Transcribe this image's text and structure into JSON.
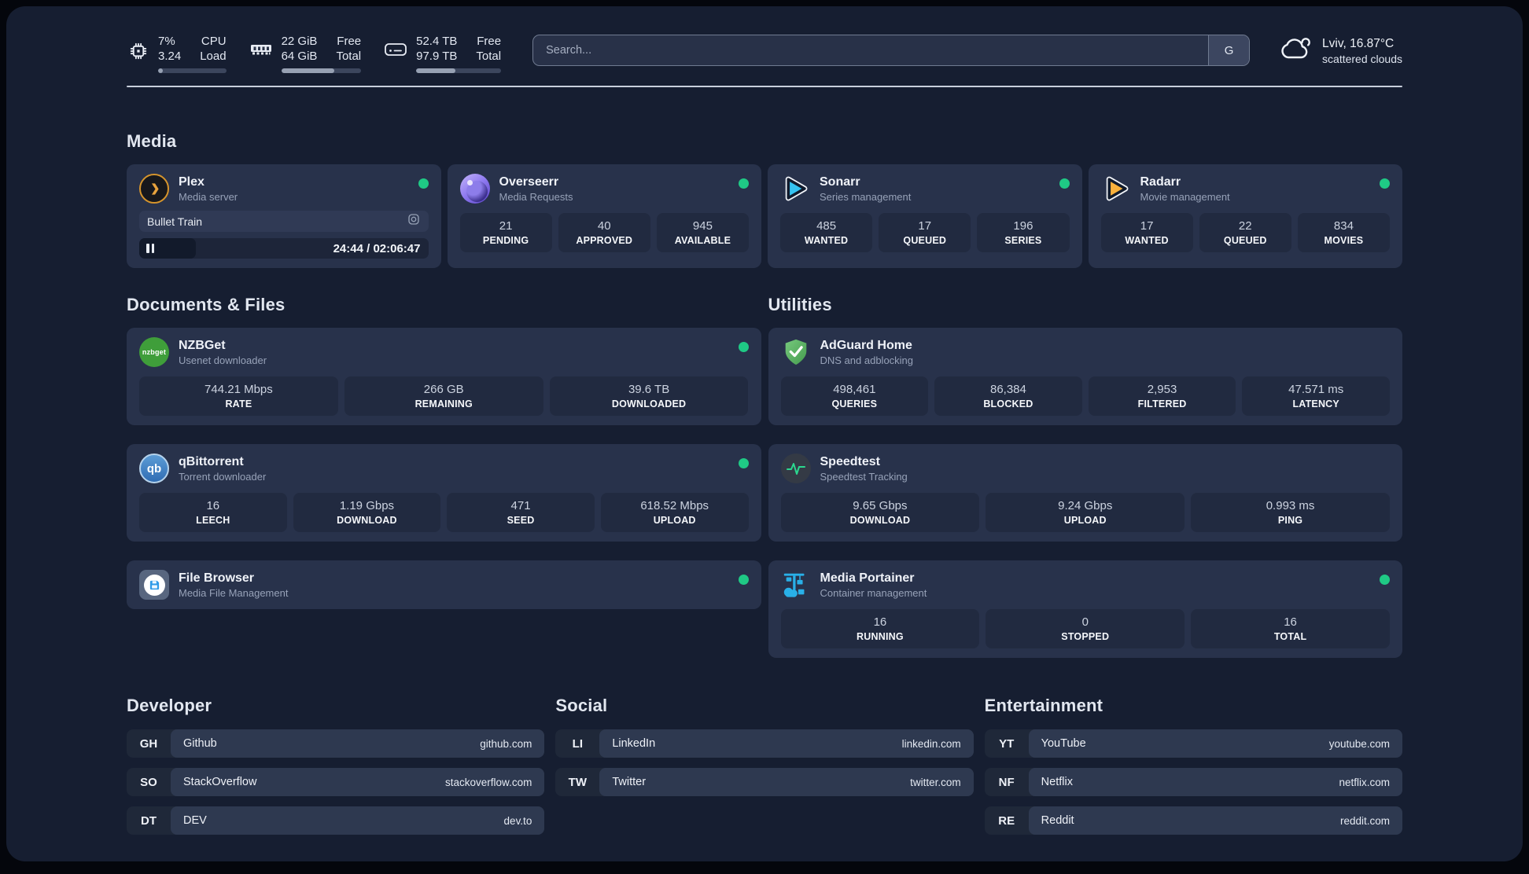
{
  "topbar": {
    "metrics": [
      {
        "name": "cpu",
        "values": [
          "7%",
          "3.24"
        ],
        "labels": [
          "CPU",
          "Load"
        ],
        "progress": 7
      },
      {
        "name": "memory",
        "values": [
          "22 GiB",
          "64 GiB"
        ],
        "labels": [
          "Free",
          "Total"
        ],
        "progress": 66
      },
      {
        "name": "storage",
        "values": [
          "52.4 TB",
          "97.9 TB"
        ],
        "labels": [
          "Free",
          "Total"
        ],
        "progress": 46
      }
    ],
    "search": {
      "placeholder": "Search...",
      "engine": "G"
    },
    "weather": {
      "location": "Lviv, 16.87°C",
      "condition": "scattered clouds"
    }
  },
  "sections": {
    "media": {
      "title": "Media",
      "plex": {
        "title": "Plex",
        "subtitle": "Media server",
        "status": "online",
        "now_playing": "Bullet Train",
        "time": "24:44 / 02:06:47",
        "progress_pct": 19.5
      },
      "overseerr": {
        "title": "Overseerr",
        "subtitle": "Media Requests",
        "status": "online",
        "stats": [
          {
            "value": "21",
            "label": "PENDING"
          },
          {
            "value": "40",
            "label": "APPROVED"
          },
          {
            "value": "945",
            "label": "AVAILABLE"
          }
        ]
      },
      "sonarr": {
        "title": "Sonarr",
        "subtitle": "Series management",
        "status": "online",
        "stats": [
          {
            "value": "485",
            "label": "WANTED"
          },
          {
            "value": "17",
            "label": "QUEUED"
          },
          {
            "value": "196",
            "label": "SERIES"
          }
        ]
      },
      "radarr": {
        "title": "Radarr",
        "subtitle": "Movie management",
        "status": "online",
        "stats": [
          {
            "value": "17",
            "label": "WANTED"
          },
          {
            "value": "22",
            "label": "QUEUED"
          },
          {
            "value": "834",
            "label": "MOVIES"
          }
        ]
      }
    },
    "documents": {
      "title": "Documents & Files",
      "nzbget": {
        "title": "NZBGet",
        "subtitle": "Usenet downloader",
        "status": "online",
        "icon_text": "nzbget",
        "stats": [
          {
            "value": "744.21 Mbps",
            "label": "RATE"
          },
          {
            "value": "266 GB",
            "label": "REMAINING"
          },
          {
            "value": "39.6 TB",
            "label": "DOWNLOADED"
          }
        ]
      },
      "qbittorrent": {
        "title": "qBittorrent",
        "subtitle": "Torrent downloader",
        "status": "online",
        "icon_text": "qb",
        "stats": [
          {
            "value": "16",
            "label": "LEECH"
          },
          {
            "value": "1.19 Gbps",
            "label": "DOWNLOAD"
          },
          {
            "value": "471",
            "label": "SEED"
          },
          {
            "value": "618.52 Mbps",
            "label": "UPLOAD"
          }
        ]
      },
      "filebrowser": {
        "title": "File Browser",
        "subtitle": "Media File Management",
        "status": "online"
      }
    },
    "utilities": {
      "title": "Utilities",
      "adguard": {
        "title": "AdGuard Home",
        "subtitle": "DNS and adblocking",
        "stats": [
          {
            "value": "498,461",
            "label": "QUERIES"
          },
          {
            "value": "86,384",
            "label": "BLOCKED"
          },
          {
            "value": "2,953",
            "label": "FILTERED"
          },
          {
            "value": "47.571 ms",
            "label": "LATENCY"
          }
        ]
      },
      "speedtest": {
        "title": "Speedtest",
        "subtitle": "Speedtest Tracking",
        "stats": [
          {
            "value": "9.65 Gbps",
            "label": "DOWNLOAD"
          },
          {
            "value": "9.24 Gbps",
            "label": "UPLOAD"
          },
          {
            "value": "0.993 ms",
            "label": "PING"
          }
        ]
      },
      "portainer": {
        "title": "Media Portainer",
        "subtitle": "Container management",
        "status": "online",
        "stats": [
          {
            "value": "16",
            "label": "RUNNING"
          },
          {
            "value": "0",
            "label": "STOPPED"
          },
          {
            "value": "16",
            "label": "TOTAL"
          }
        ]
      }
    },
    "links": {
      "developer": {
        "title": "Developer",
        "items": [
          {
            "abbr": "GH",
            "name": "Github",
            "url": "github.com"
          },
          {
            "abbr": "SO",
            "name": "StackOverflow",
            "url": "stackoverflow.com"
          },
          {
            "abbr": "DT",
            "name": "DEV",
            "url": "dev.to"
          }
        ]
      },
      "social": {
        "title": "Social",
        "items": [
          {
            "abbr": "LI",
            "name": "LinkedIn",
            "url": "linkedin.com"
          },
          {
            "abbr": "TW",
            "name": "Twitter",
            "url": "twitter.com"
          }
        ]
      },
      "entertainment": {
        "title": "Entertainment",
        "items": [
          {
            "abbr": "YT",
            "name": "YouTube",
            "url": "youtube.com"
          },
          {
            "abbr": "NF",
            "name": "Netflix",
            "url": "netflix.com"
          },
          {
            "abbr": "RE",
            "name": "Reddit",
            "url": "reddit.com"
          }
        ]
      }
    }
  },
  "colors": {
    "status_online": "#1fc985",
    "plex_accent": "#d6952c",
    "sonarr_accent": "#35c3f1",
    "radarr_accent": "#f9b13c",
    "adguard_accent": "#5bb263",
    "portainer_accent": "#29b0e8",
    "speedtest_accent": "#2bd88f"
  }
}
